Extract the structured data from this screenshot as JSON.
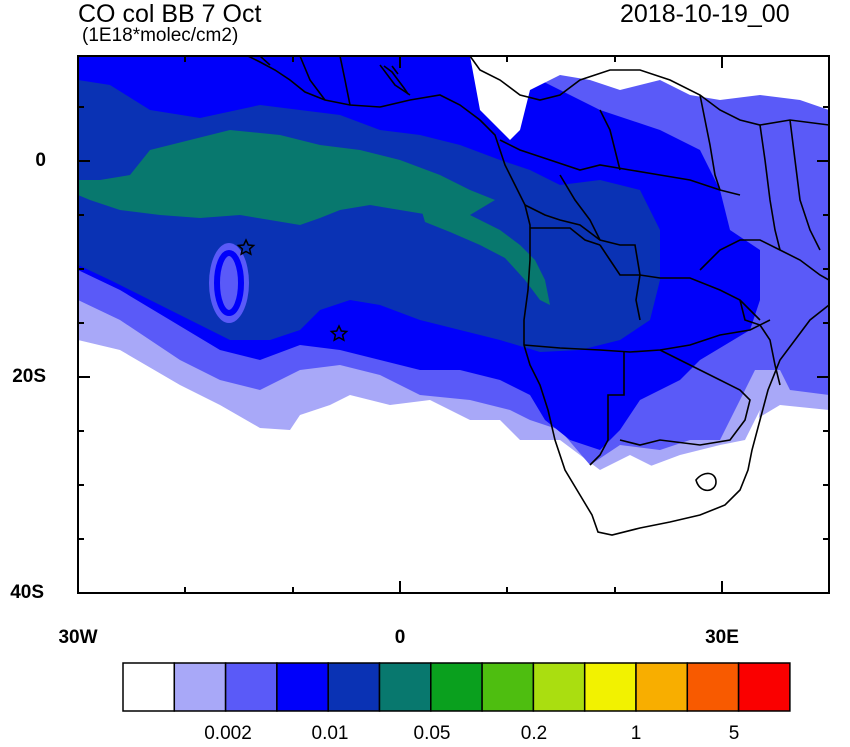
{
  "map": {
    "title": "CO col BB 7 Oct",
    "units": "(1E18*molec/cm2)",
    "datetime": "2018-10-19_00",
    "y_tick_labels": [
      "0",
      "20S",
      "40S"
    ],
    "x_tick_labels": [
      "30W",
      "0",
      "30E"
    ],
    "markers": [
      "star",
      "star"
    ]
  },
  "colorbar": {
    "labels": [
      "0.002",
      "0.01",
      "0.05",
      "0.2",
      "1",
      "5"
    ],
    "colors": [
      "#ffffff",
      "#a8a8f8",
      "#5a5af8",
      "#0000fa",
      "#0a32b4",
      "#08786e",
      "#0aa01e",
      "#4ebe10",
      "#aade10",
      "#f2f200",
      "#f8ae00",
      "#f85a00",
      "#fa0000"
    ]
  },
  "palette": {
    "land": "#ffffff",
    "c1": "#a8a8f8",
    "c2": "#5a5af8",
    "c3": "#0000fa",
    "c4": "#0a32b4",
    "c5": "#08786e"
  }
}
